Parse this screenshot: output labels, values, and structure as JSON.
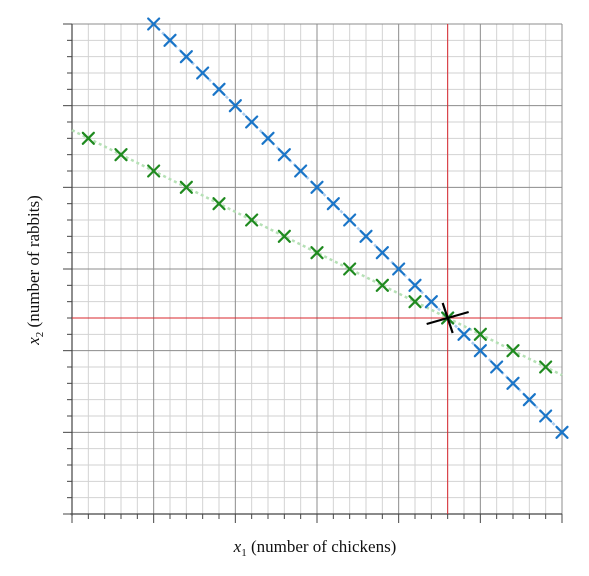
{
  "chart_data": {
    "type": "scatter",
    "xlabel": {
      "var": "x",
      "sub": "1",
      "text": " (number of chickens)"
    },
    "ylabel": {
      "var": "x",
      "sub": "2",
      "text": " (number of rabbits)"
    },
    "xlim": [
      0,
      30
    ],
    "ylim": [
      0,
      30
    ],
    "grid": true,
    "minor_step": 1,
    "major_step": 5,
    "series": [
      {
        "color": "#1a75c8",
        "line_color": "#a9ccef",
        "points": [
          [
            5,
            30
          ],
          [
            6,
            29
          ],
          [
            7,
            28
          ],
          [
            8,
            27
          ],
          [
            9,
            26
          ],
          [
            10,
            25
          ],
          [
            11,
            24
          ],
          [
            12,
            23
          ],
          [
            13,
            22
          ],
          [
            14,
            21
          ],
          [
            15,
            20
          ],
          [
            16,
            19
          ],
          [
            17,
            18
          ],
          [
            18,
            17
          ],
          [
            19,
            16
          ],
          [
            20,
            15
          ],
          [
            21,
            14
          ],
          [
            22,
            13
          ],
          [
            23,
            12
          ],
          [
            24,
            11
          ],
          [
            25,
            10
          ],
          [
            26,
            9
          ],
          [
            27,
            8
          ],
          [
            28,
            7
          ],
          [
            29,
            6
          ],
          [
            30,
            5
          ]
        ]
      },
      {
        "color": "#1f8a1f",
        "line_color": "#b5e0b5",
        "points": [
          [
            1,
            23
          ],
          [
            3,
            22
          ],
          [
            5,
            21
          ],
          [
            7,
            20
          ],
          [
            9,
            19
          ],
          [
            11,
            18
          ],
          [
            13,
            17
          ],
          [
            15,
            16
          ],
          [
            17,
            15
          ],
          [
            19,
            14
          ],
          [
            21,
            13
          ],
          [
            23,
            12
          ],
          [
            25,
            11
          ],
          [
            27,
            10
          ],
          [
            29,
            9
          ]
        ]
      }
    ],
    "solution": {
      "x": 23,
      "y": 12,
      "line_color": "#d9272e",
      "marker_color": "#000000"
    }
  }
}
